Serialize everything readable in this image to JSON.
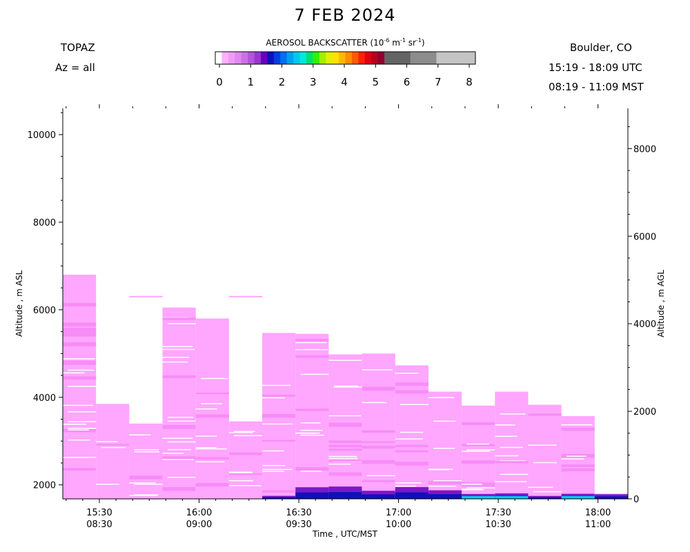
{
  "header": {
    "title": "7 FEB 2024",
    "site": "TOPAZ",
    "azimuth": "Az = all",
    "location": "Boulder, CO",
    "utc_range": "15:19 - 18:09 UTC",
    "mst_range": "08:19 - 11:09 MST"
  },
  "colorbar": {
    "title_prefix": "AEROSOL BACKSCATTER (10",
    "exp1": "-6",
    "unit_m": " m",
    "exp2": "-1",
    "unit_sr": " sr",
    "exp3": "-1",
    "title_suffix": ")",
    "ticks": [
      "0",
      "1",
      "2",
      "3",
      "4",
      "5",
      "6",
      "7",
      "8"
    ],
    "colors": [
      "#ffffff",
      "#ffb0ff",
      "#f09cf5",
      "#e088ef",
      "#cc70e6",
      "#b555db",
      "#9a36cf",
      "#6a00bf",
      "#1010b8",
      "#0040e0",
      "#0070f0",
      "#00a0f0",
      "#00c8f0",
      "#00e8e0",
      "#00e070",
      "#30f000",
      "#a0f000",
      "#e0f000",
      "#ffe000",
      "#ffb800",
      "#ff8c00",
      "#ff5a00",
      "#ff2000",
      "#e00010",
      "#b80020",
      "#900030",
      "#646464",
      "#646464",
      "#646464",
      "#646464",
      "#8c8c8c",
      "#8c8c8c",
      "#8c8c8c",
      "#8c8c8c",
      "#c4c4c4",
      "#c4c4c4",
      "#c4c4c4",
      "#c4c4c4",
      "#c4c4c4",
      "#c4c4c4"
    ]
  },
  "chart_data": {
    "type": "heatmap",
    "xlabel": "Time , UTC/MST",
    "ylabel_left": "Altitude , m ASL",
    "ylabel_right": "Altitude , m AGL",
    "x_range_utc": [
      "15:19",
      "18:09"
    ],
    "y_left_range_m": [
      1680,
      10600
    ],
    "y_right_offset_m": 1680,
    "x_ticks": [
      {
        "utc": "15:30",
        "mst": "08:30"
      },
      {
        "utc": "16:00",
        "mst": "09:00"
      },
      {
        "utc": "16:30",
        "mst": "09:30"
      },
      {
        "utc": "17:00",
        "mst": "10:00"
      },
      {
        "utc": "17:30",
        "mst": "10:30"
      },
      {
        "utc": "18:00",
        "mst": "11:00"
      }
    ],
    "y_left_ticks": [
      "2000",
      "4000",
      "6000",
      "8000",
      "10000"
    ],
    "y_right_ticks": [
      "0",
      "2000",
      "4000",
      "6000",
      "8000"
    ],
    "profiles": [
      {
        "start": "15:19",
        "end": "15:29",
        "top": 6800
      },
      {
        "start": "15:29",
        "end": "15:39",
        "top": 3850
      },
      {
        "start": "15:39",
        "end": "15:49",
        "top": 3400
      },
      {
        "start": "15:49",
        "end": "15:59",
        "top": 6050
      },
      {
        "start": "15:59",
        "end": "16:09",
        "top": 5800
      },
      {
        "start": "16:09",
        "end": "16:19",
        "top": 3450
      },
      {
        "start": "16:19",
        "end": "16:29",
        "top": 5470
      },
      {
        "start": "16:29",
        "end": "16:39",
        "top": 5450
      },
      {
        "start": "16:39",
        "end": "16:49",
        "top": 4980
      },
      {
        "start": "16:49",
        "end": "16:59",
        "top": 5000
      },
      {
        "start": "16:59",
        "end": "17:09",
        "top": 4730
      },
      {
        "start": "17:09",
        "end": "17:19",
        "top": 4130
      },
      {
        "start": "17:19",
        "end": "17:29",
        "top": 3810
      },
      {
        "start": "17:29",
        "end": "17:39",
        "top": 4130
      },
      {
        "start": "17:39",
        "end": "17:49",
        "top": 3830
      },
      {
        "start": "17:49",
        "end": "17:59",
        "top": 3570
      },
      {
        "start": "17:59",
        "end": "18:09",
        "top": 1800
      }
    ],
    "thin_layers_at_6300m": [
      {
        "start": "15:39",
        "end": "15:49"
      },
      {
        "start": "16:09",
        "end": "16:19"
      }
    ],
    "dominant_color": "#ffa6ff"
  }
}
